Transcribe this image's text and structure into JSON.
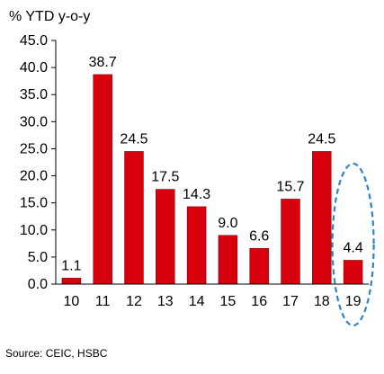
{
  "unit_label": "% YTD y-o-y",
  "source": "Source: CEIC, HSBC",
  "colors": {
    "bar": "#d9000e",
    "bar_outline": "#8a0008",
    "highlight_ellipse": "#2e86c8",
    "axis": "#000000"
  },
  "chart_data": {
    "type": "bar",
    "title": "",
    "xlabel": "",
    "ylabel": "% YTD y-o-y",
    "categories": [
      "10",
      "11",
      "12",
      "13",
      "14",
      "15",
      "16",
      "17",
      "18",
      "19"
    ],
    "values": [
      1.1,
      38.7,
      24.5,
      17.5,
      14.3,
      9.0,
      6.6,
      15.7,
      24.5,
      4.4
    ],
    "value_labels": [
      "1.1",
      "38.7",
      "24.5",
      "17.5",
      "14.3",
      "9.0",
      "6.6",
      "15.7",
      "24.5",
      "4.4"
    ],
    "ylim": [
      0,
      45
    ],
    "yticks": [
      "0.0",
      "5.0",
      "10.0",
      "15.0",
      "20.0",
      "25.0",
      "30.0",
      "35.0",
      "40.0",
      "45.0"
    ],
    "grid": false,
    "legend": "none",
    "highlight": {
      "category": "19",
      "shape": "dashed-ellipse"
    }
  }
}
